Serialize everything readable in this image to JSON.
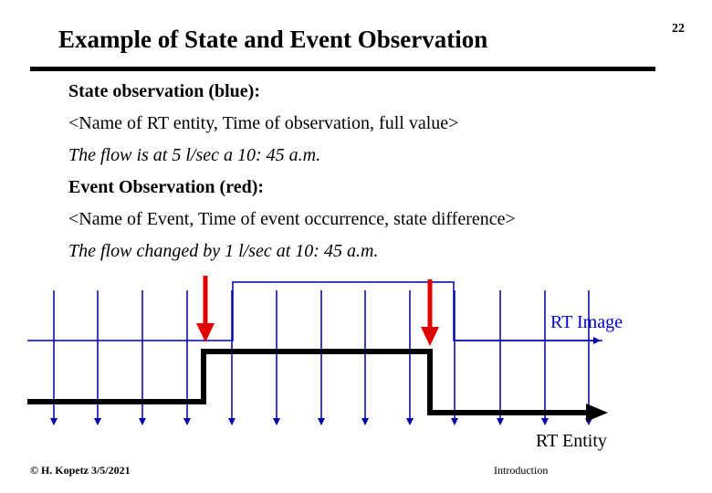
{
  "slide": {
    "title": "Example of State and Event Observation",
    "page_number": "22"
  },
  "body": {
    "state_heading": "State observation (blue):",
    "state_tuple": "<Name of RT entity, Time of observation, full value>",
    "state_example": "The flow is at 5 l/sec  a 10: 45 a.m.",
    "event_heading": "Event Observation (red):",
    "event_tuple": "<Name of Event, Time of event occurrence, state difference>",
    "event_example": "The flow changed by 1 l/sec  at 10: 45 a.m."
  },
  "diagram": {
    "rt_image_label": "RT Image",
    "rt_entity_label": "RT Entity",
    "colors": {
      "state": "#0000aa",
      "event": "#e00000",
      "entity": "#000000"
    }
  },
  "footer": {
    "author": "© H. Kopetz  3/5/2021",
    "section": "Introduction"
  }
}
